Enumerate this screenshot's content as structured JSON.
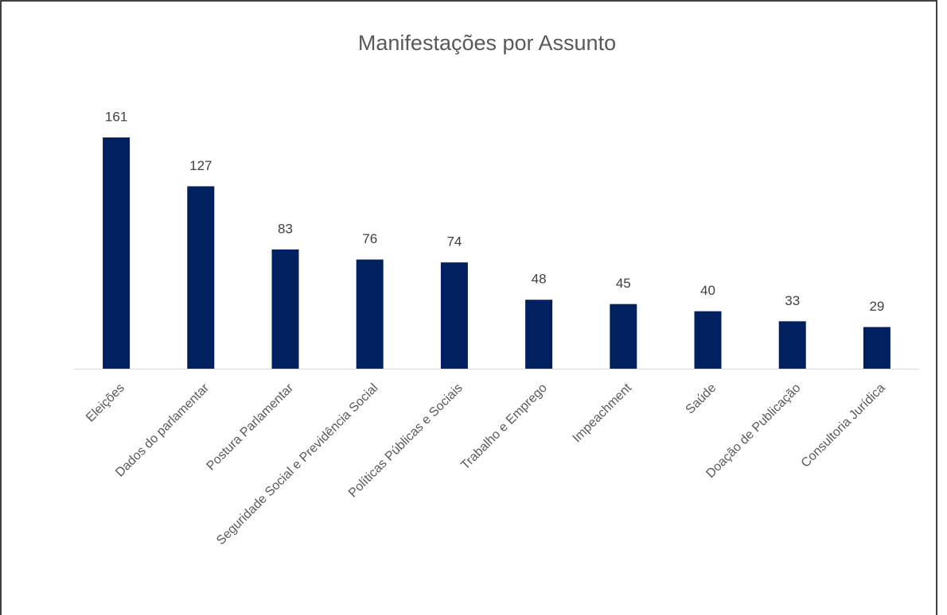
{
  "chart_data": {
    "type": "bar",
    "title": "Manifestações por Assunto",
    "categories": [
      "Eleições",
      "Dados do parlamentar",
      "Postura Parlamentar",
      "Seguridade Social e Previdência Social",
      "Políticas Públicas e Sociais",
      "Trabalho e Emprego",
      "Impeachment",
      "Saúde",
      "Doação de Publicação",
      "Consultoria Jurídica"
    ],
    "values": [
      161,
      127,
      83,
      76,
      74,
      48,
      45,
      40,
      33,
      29
    ],
    "color": "#002060"
  }
}
